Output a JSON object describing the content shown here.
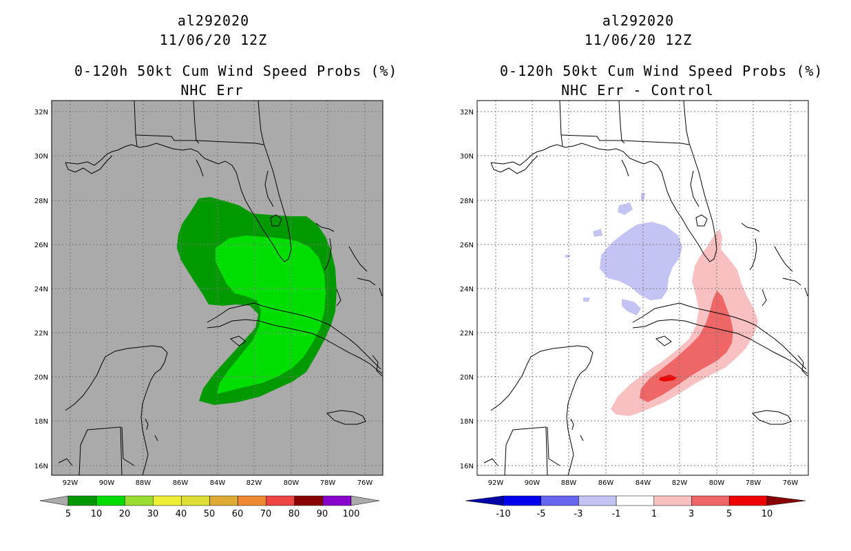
{
  "left_panel": {
    "storm_id": "al292020",
    "datetime": "11/06/20 12Z",
    "product": "0-120h 50kt Cum Wind Speed Probs (%)",
    "subtitle": "NHC Err",
    "lat_labels": [
      "32N",
      "30N",
      "28N",
      "26N",
      "24N",
      "22N",
      "20N",
      "18N",
      "16N"
    ],
    "lon_labels": [
      "92W",
      "90W",
      "88W",
      "86W",
      "84W",
      "82W",
      "80W",
      "78W",
      "76W"
    ],
    "colorbar": {
      "labels": [
        "5",
        "10",
        "20",
        "30",
        "40",
        "50",
        "60",
        "70",
        "80",
        "90",
        "100"
      ],
      "colors": [
        "#009900",
        "#00dd00",
        "#99dd33",
        "#eeee33",
        "#dddd33",
        "#ddaa33",
        "#ee8833",
        "#ee4444",
        "#880000",
        "#8800cc"
      ]
    }
  },
  "right_panel": {
    "storm_id": "al292020",
    "datetime": "11/06/20 12Z",
    "product": "0-120h 50kt Cum Wind Speed Probs (%)",
    "subtitle": "NHC Err - Control",
    "lat_labels": [
      "32N",
      "30N",
      "28N",
      "26N",
      "24N",
      "22N",
      "20N",
      "18N",
      "16N"
    ],
    "lon_labels": [
      "92W",
      "90W",
      "88W",
      "86W",
      "84W",
      "82W",
      "80W",
      "78W",
      "76W"
    ],
    "colorbar": {
      "labels": [
        "-10",
        "-5",
        "-3",
        "-1",
        "1",
        "3",
        "5",
        "10"
      ],
      "colors": [
        "#0000aa",
        "#0000ee",
        "#6666ee",
        "#c4c4f4",
        "#ffffff",
        "#f8c0c0",
        "#ee6666",
        "#ee0000",
        "#880000"
      ]
    }
  }
}
